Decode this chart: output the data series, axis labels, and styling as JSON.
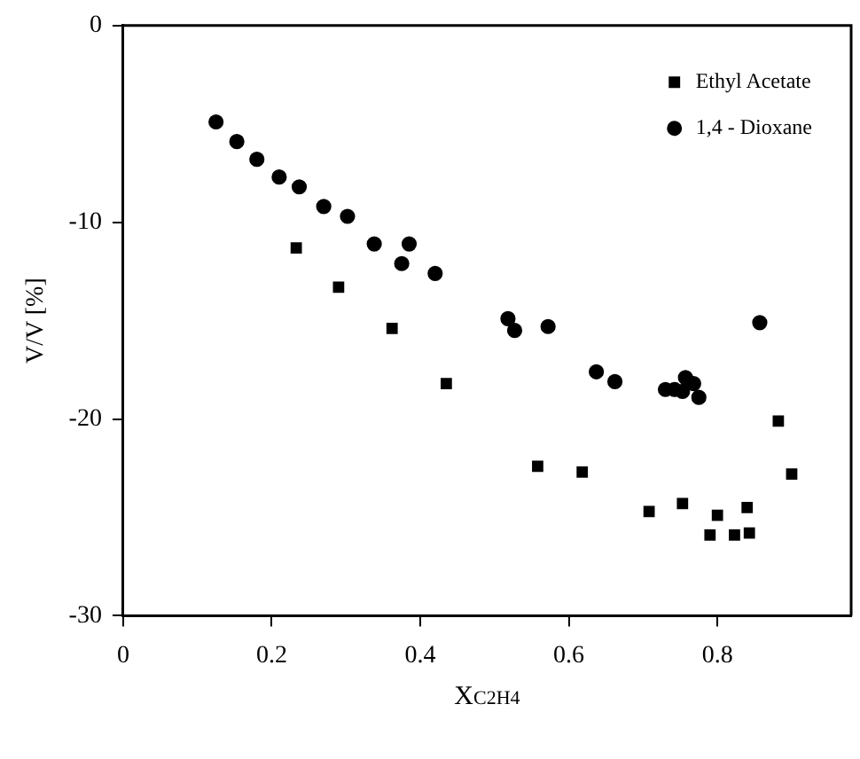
{
  "chart_data": {
    "type": "scatter",
    "xlabel": "X$_{C2H4}$",
    "ylabel": "V/V [%]",
    "xlim": [
      0,
      0.98
    ],
    "xticks": [
      0,
      0.2,
      0.4,
      0.6,
      0.8
    ],
    "ylim": [
      -30,
      0
    ],
    "yticks": [
      -30,
      -20,
      -10,
      0
    ],
    "grid": false,
    "legend": "top right",
    "series": [
      {
        "name": "Ethyl Acetate",
        "color": "#000000",
        "marker": "square",
        "x": [
          0.233,
          0.29,
          0.362,
          0.435,
          0.558,
          0.618,
          0.708,
          0.753,
          0.79,
          0.8,
          0.823,
          0.84,
          0.843,
          0.882,
          0.9
        ],
        "values": [
          -11.3,
          -13.3,
          -15.4,
          -18.2,
          -22.4,
          -22.7,
          -24.7,
          -24.3,
          -25.9,
          -24.9,
          -25.9,
          -24.5,
          -25.8,
          -20.1,
          -22.8
        ]
      },
      {
        "name": "1,4 - Dioxane",
        "color": "#000000",
        "marker": "circle",
        "x": [
          0.125,
          0.153,
          0.18,
          0.21,
          0.237,
          0.27,
          0.302,
          0.338,
          0.385,
          0.375,
          0.42,
          0.518,
          0.527,
          0.572,
          0.637,
          0.662,
          0.73,
          0.742,
          0.753,
          0.757,
          0.768,
          0.775,
          0.857
        ],
        "values": [
          -4.9,
          -5.9,
          -6.8,
          -7.7,
          -8.2,
          -9.2,
          -9.7,
          -11.1,
          -11.1,
          -12.1,
          -12.6,
          -14.9,
          -15.5,
          -15.3,
          -17.6,
          -18.1,
          -18.5,
          -18.5,
          -18.6,
          -17.9,
          -18.2,
          -18.9,
          -15.1
        ]
      }
    ]
  }
}
